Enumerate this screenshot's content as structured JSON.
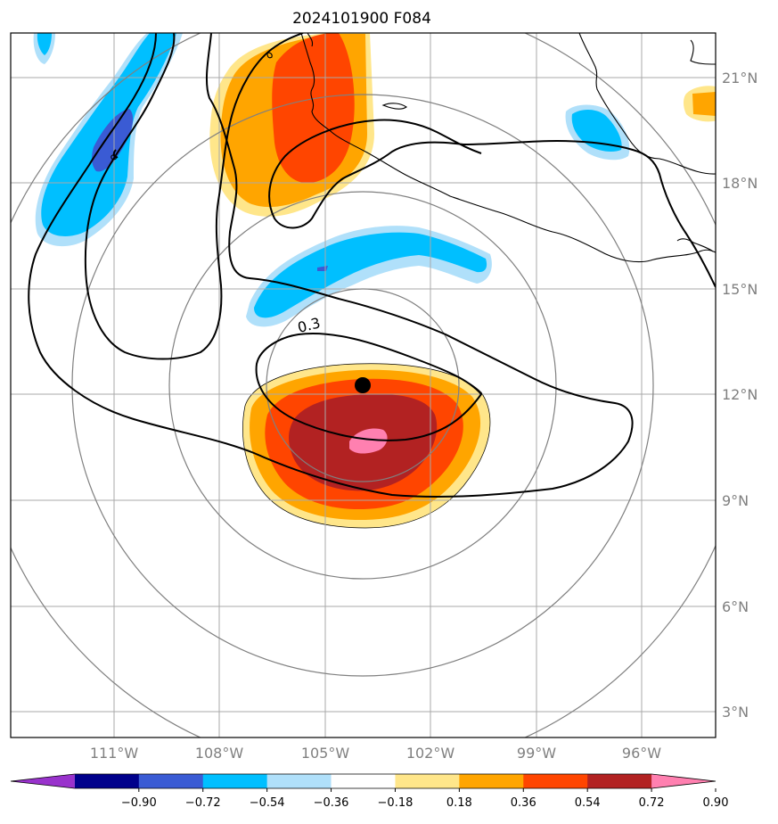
{
  "title": "2024101900 F084",
  "chart_data": {
    "type": "contour-map",
    "title": "2024101900 F084",
    "lon_ticks": [
      "111°W",
      "108°W",
      "105°W",
      "102°W",
      "99°W",
      "96°W"
    ],
    "lat_ticks": [
      "21°N",
      "18°N",
      "15°N",
      "12°N",
      "9°N",
      "6°N",
      "3°N"
    ],
    "lon_range": [
      -113.9,
      -94.0
    ],
    "lat_range": [
      2.3,
      22.2
    ],
    "colorbar": {
      "ticks": [
        "−0.90",
        "−0.72",
        "−0.54",
        "−0.36",
        "−0.18",
        "0.18",
        "0.36",
        "0.54",
        "0.72",
        "0.90"
      ],
      "colors": [
        "#9932cc",
        "#00008b",
        "#3a5bd4",
        "#00bfff",
        "#b0e0fa",
        "#ffffff",
        "#ffe68a",
        "#ffa500",
        "#ff4500",
        "#b22222",
        "#ff80b0"
      ]
    },
    "contour_label": "0.3",
    "storm_center": {
      "lon": -104.0,
      "lat": 12.3
    }
  }
}
